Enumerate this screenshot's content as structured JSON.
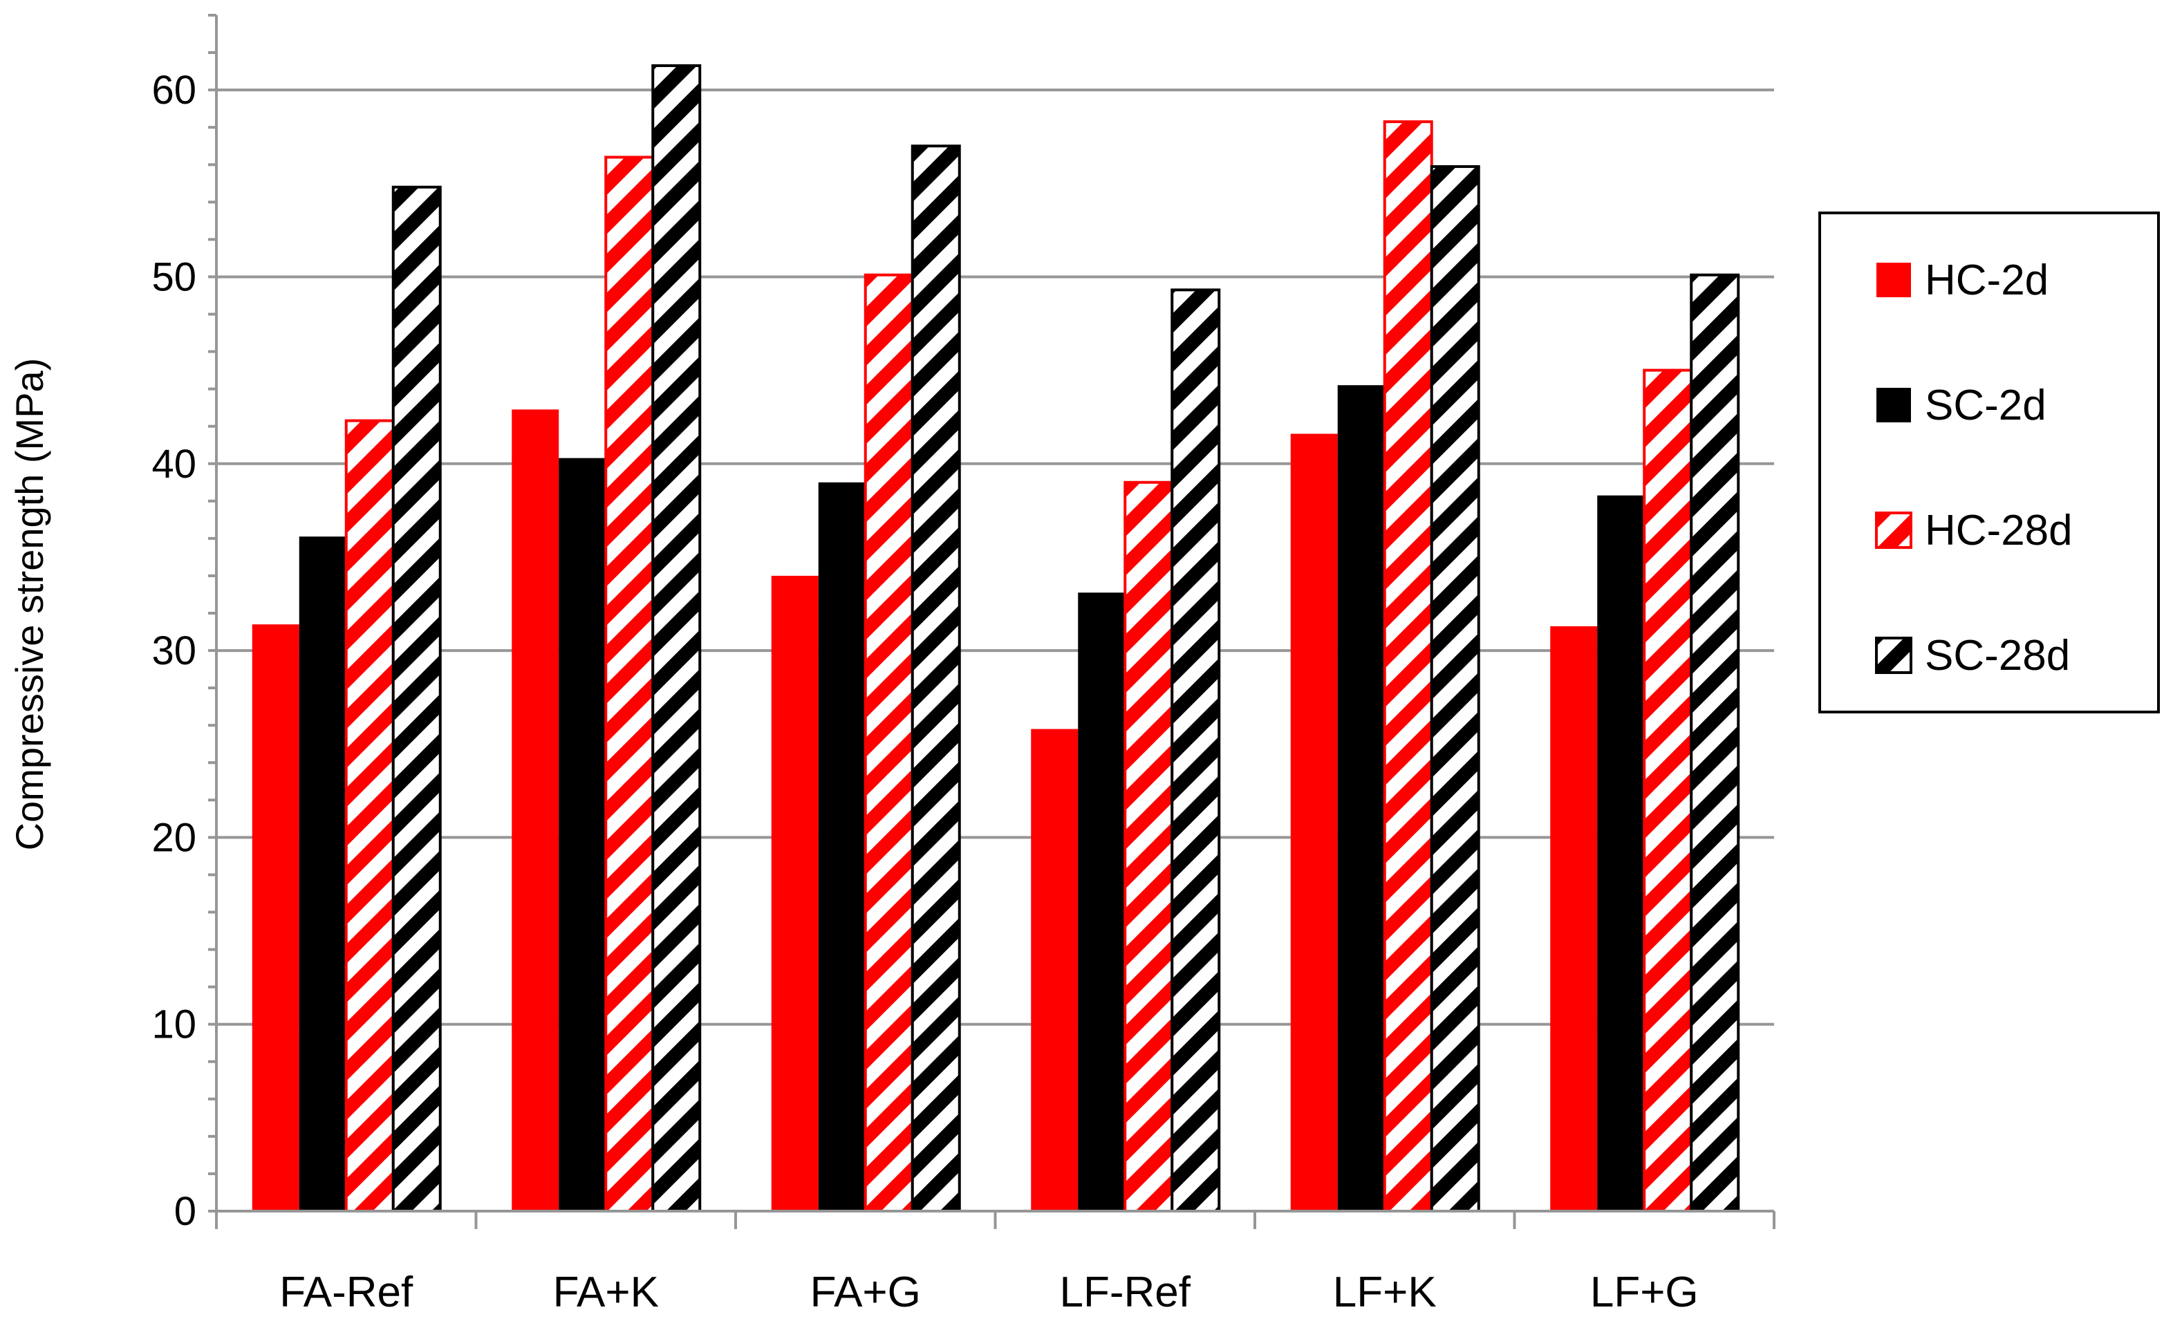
{
  "chart_data": {
    "type": "bar",
    "title": "",
    "xlabel": "",
    "ylabel": "Compressive strength (MPa)",
    "ylim": [
      0,
      64
    ],
    "yticks": [
      0,
      10,
      20,
      30,
      40,
      50,
      60
    ],
    "grid": true,
    "legend_position": "right",
    "categories": [
      "FA-Ref",
      "FA+K",
      "FA+G",
      "LF-Ref",
      "LF+K",
      "LF+G"
    ],
    "series": [
      {
        "name": "HC-2d",
        "values": [
          31.4,
          42.9,
          34.0,
          25.8,
          41.6,
          31.3
        ],
        "color": "#ff0000",
        "pattern": "solid"
      },
      {
        "name": "SC-2d",
        "values": [
          36.1,
          40.3,
          39.0,
          33.1,
          44.2,
          38.3
        ],
        "color": "#000000",
        "pattern": "solid"
      },
      {
        "name": "HC-28d",
        "values": [
          42.3,
          56.4,
          50.1,
          39.0,
          58.3,
          45.0
        ],
        "color": "#ff0000",
        "pattern": "hatch"
      },
      {
        "name": "SC-28d",
        "values": [
          54.8,
          61.3,
          57.0,
          49.3,
          55.9,
          50.1
        ],
        "color": "#000000",
        "pattern": "hatch"
      }
    ]
  }
}
